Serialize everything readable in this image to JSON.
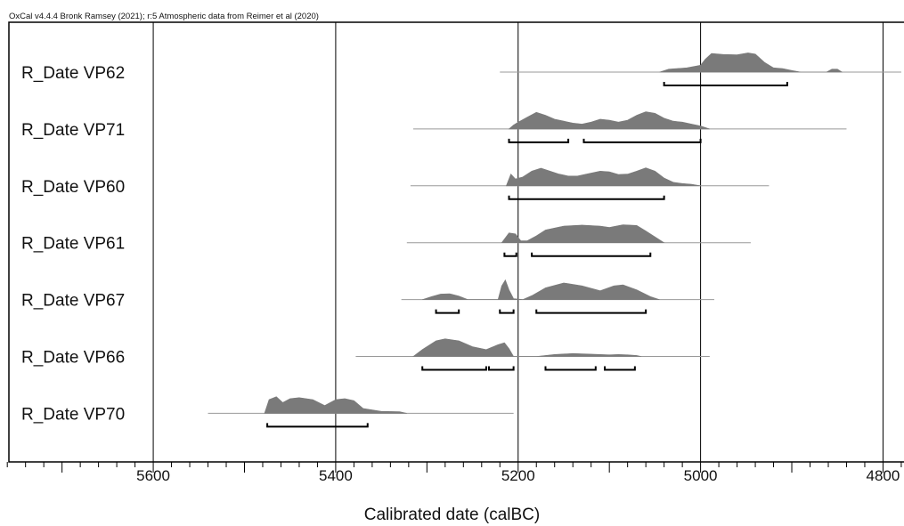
{
  "credit": "OxCal v4.4.4 Bronk Ramsey (2021); r:5 Atmospheric data from Reimer et al (2020)",
  "chart_data": {
    "type": "area",
    "subtype": "calibrated radiocarbon multiplot",
    "xlabel": "Calibrated date (calBC)",
    "x_direction": "decreasing left-to-right (older dates on the left)",
    "xlim": [
      5768,
      4777
    ],
    "xticks": [
      5600,
      5400,
      5200,
      5000,
      4800
    ],
    "vertical_gridlines": [
      5600,
      5400,
      5200,
      5000,
      4800
    ],
    "fill_color": "#7a7a7a",
    "series": [
      {
        "name": "R_Date VP62",
        "range_line": [
          5220,
          4780
        ],
        "distribution": [
          [
            5045,
            0
          ],
          [
            5035,
            0.15
          ],
          [
            5015,
            0.22
          ],
          [
            5000,
            0.35
          ],
          [
            4995,
            0.65
          ],
          [
            4988,
            0.95
          ],
          [
            4975,
            0.9
          ],
          [
            4960,
            0.88
          ],
          [
            4948,
            0.98
          ],
          [
            4940,
            0.92
          ],
          [
            4930,
            0.5
          ],
          [
            4920,
            0.22
          ],
          [
            4910,
            0.18
          ],
          [
            4900,
            0.08
          ],
          [
            4890,
            0
          ],
          [
            4862,
            0
          ],
          [
            4856,
            0.15
          ],
          [
            4850,
            0.15
          ],
          [
            4845,
            0
          ]
        ],
        "range_95": [
          [
            5040,
            4905
          ]
        ]
      },
      {
        "name": "R_Date VP71",
        "range_line": [
          5315,
          4840
        ],
        "distribution": [
          [
            5210,
            0
          ],
          [
            5205,
            0.2
          ],
          [
            5200,
            0.35
          ],
          [
            5190,
            0.6
          ],
          [
            5180,
            0.85
          ],
          [
            5170,
            0.7
          ],
          [
            5160,
            0.5
          ],
          [
            5150,
            0.4
          ],
          [
            5140,
            0.3
          ],
          [
            5130,
            0.25
          ],
          [
            5120,
            0.35
          ],
          [
            5110,
            0.5
          ],
          [
            5100,
            0.45
          ],
          [
            5090,
            0.35
          ],
          [
            5080,
            0.45
          ],
          [
            5070,
            0.7
          ],
          [
            5060,
            0.88
          ],
          [
            5050,
            0.8
          ],
          [
            5040,
            0.55
          ],
          [
            5030,
            0.4
          ],
          [
            5020,
            0.35
          ],
          [
            5010,
            0.25
          ],
          [
            5000,
            0.15
          ],
          [
            4990,
            0
          ]
        ],
        "range_95": [
          [
            5210,
            5145
          ],
          [
            5128,
            5000
          ]
        ]
      },
      {
        "name": "R_Date VP60",
        "range_line": [
          5318,
          4925
        ],
        "distribution": [
          [
            5213,
            0
          ],
          [
            5208,
            0.6
          ],
          [
            5203,
            0.35
          ],
          [
            5195,
            0.45
          ],
          [
            5185,
            0.75
          ],
          [
            5175,
            0.9
          ],
          [
            5165,
            0.75
          ],
          [
            5155,
            0.6
          ],
          [
            5145,
            0.5
          ],
          [
            5135,
            0.5
          ],
          [
            5125,
            0.6
          ],
          [
            5110,
            0.75
          ],
          [
            5100,
            0.72
          ],
          [
            5090,
            0.58
          ],
          [
            5080,
            0.6
          ],
          [
            5070,
            0.75
          ],
          [
            5060,
            0.92
          ],
          [
            5050,
            0.75
          ],
          [
            5040,
            0.4
          ],
          [
            5030,
            0.18
          ],
          [
            5020,
            0.12
          ],
          [
            5010,
            0.08
          ],
          [
            5000,
            0
          ]
        ],
        "range_95": [
          [
            5210,
            5040
          ]
        ]
      },
      {
        "name": "R_Date VP61",
        "range_line": [
          5322,
          4945
        ],
        "distribution": [
          [
            5218,
            0
          ],
          [
            5210,
            0.5
          ],
          [
            5203,
            0.45
          ],
          [
            5197,
            0.1
          ],
          [
            5190,
            0.1
          ],
          [
            5180,
            0.35
          ],
          [
            5170,
            0.65
          ],
          [
            5150,
            0.85
          ],
          [
            5130,
            0.9
          ],
          [
            5110,
            0.85
          ],
          [
            5100,
            0.78
          ],
          [
            5085,
            0.92
          ],
          [
            5070,
            0.88
          ],
          [
            5060,
            0.6
          ],
          [
            5050,
            0.3
          ],
          [
            5040,
            0
          ]
        ],
        "range_95": [
          [
            5215,
            5202
          ],
          [
            5185,
            5055
          ]
        ]
      },
      {
        "name": "R_Date VP67",
        "range_line": [
          5328,
          4985
        ],
        "distribution": [
          [
            5305,
            0
          ],
          [
            5295,
            0.15
          ],
          [
            5285,
            0.28
          ],
          [
            5275,
            0.3
          ],
          [
            5265,
            0.18
          ],
          [
            5255,
            0
          ],
          [
            5222,
            0
          ],
          [
            5218,
            0.7
          ],
          [
            5214,
            1.0
          ],
          [
            5210,
            0.5
          ],
          [
            5205,
            0.05
          ],
          [
            5195,
            0
          ],
          [
            5185,
            0.2
          ],
          [
            5170,
            0.6
          ],
          [
            5150,
            0.85
          ],
          [
            5130,
            0.7
          ],
          [
            5110,
            0.45
          ],
          [
            5095,
            0.7
          ],
          [
            5085,
            0.75
          ],
          [
            5070,
            0.5
          ],
          [
            5055,
            0.15
          ],
          [
            5045,
            0
          ]
        ],
        "range_95": [
          [
            5290,
            5265
          ],
          [
            5220,
            5205
          ],
          [
            5180,
            5060
          ]
        ]
      },
      {
        "name": "R_Date VP66",
        "range_line": [
          5378,
          4990
        ],
        "distribution": [
          [
            5315,
            0
          ],
          [
            5305,
            0.35
          ],
          [
            5290,
            0.8
          ],
          [
            5280,
            0.9
          ],
          [
            5265,
            0.8
          ],
          [
            5250,
            0.5
          ],
          [
            5235,
            0.35
          ],
          [
            5222,
            0.6
          ],
          [
            5215,
            0.7
          ],
          [
            5210,
            0.4
          ],
          [
            5205,
            0
          ],
          [
            5180,
            0
          ],
          [
            5170,
            0.05
          ],
          [
            5160,
            0.1
          ],
          [
            5140,
            0.15
          ],
          [
            5120,
            0.12
          ],
          [
            5100,
            0.08
          ],
          [
            5090,
            0.1
          ],
          [
            5080,
            0.08
          ],
          [
            5070,
            0.05
          ],
          [
            5065,
            0
          ]
        ],
        "range_95": [
          [
            5305,
            5235
          ],
          [
            5232,
            5205
          ],
          [
            5170,
            5115
          ],
          [
            5105,
            5072
          ]
        ]
      },
      {
        "name": "R_Date VP70",
        "range_line": [
          5540,
          5205
        ],
        "distribution": [
          [
            5478,
            0
          ],
          [
            5473,
            0.7
          ],
          [
            5465,
            0.85
          ],
          [
            5458,
            0.55
          ],
          [
            5450,
            0.75
          ],
          [
            5440,
            0.8
          ],
          [
            5425,
            0.7
          ],
          [
            5412,
            0.4
          ],
          [
            5400,
            0.7
          ],
          [
            5390,
            0.75
          ],
          [
            5380,
            0.65
          ],
          [
            5370,
            0.25
          ],
          [
            5350,
            0.1
          ],
          [
            5330,
            0.08
          ],
          [
            5322,
            0
          ]
        ],
        "range_95": [
          [
            5475,
            5365
          ]
        ]
      }
    ]
  }
}
